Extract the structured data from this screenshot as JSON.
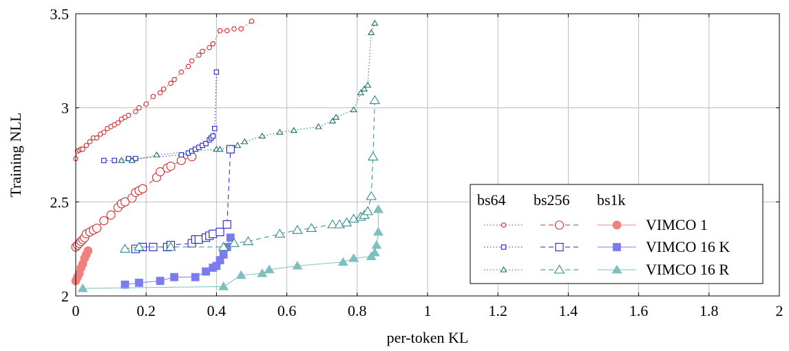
{
  "chart_data": {
    "type": "line",
    "xlabel": "per-token KL",
    "ylabel": "Training NLL",
    "xlim": [
      0,
      2
    ],
    "ylim": [
      2,
      3.5
    ],
    "xticks": [
      0,
      0.2,
      0.4,
      0.6,
      0.8,
      1,
      1.2,
      1.4,
      1.6,
      1.8,
      2
    ],
    "xtick_labels": [
      "0",
      "0.2",
      "0.4",
      "0.6",
      "0.8",
      "1",
      "1.2",
      "1.4",
      "1.6",
      "1.8",
      "2"
    ],
    "yticks": [
      2,
      2.5,
      3,
      3.5
    ],
    "ytick_labels": [
      "2",
      "2.5",
      "3",
      "3.5"
    ],
    "grid": true,
    "legend": {
      "placement": "bottom-right",
      "column_headers": [
        "bs64",
        "bs256",
        "bs1k"
      ],
      "row_labels": [
        "VIMCO 1",
        "VIMCO 16 K",
        "VIMCO 16 R"
      ]
    },
    "colors": {
      "vimco1": "#d62728",
      "vimco1_bs1k": "#f08080",
      "vimco16k": "#1f1fcc",
      "vimco16k_bs1k": "#7b7bf0",
      "vimco16r": "#1b6b6b",
      "vimco16r_bs256": "#2e8b8b",
      "vimco16r_bs1k": "#7fbfbf"
    },
    "series": [
      {
        "group": "VIMCO 1",
        "batch": "bs64",
        "style": "dotted",
        "marker": "circle-open",
        "color": "#d62728",
        "x": [
          0.0,
          0.005,
          0.01,
          0.015,
          0.02,
          0.03,
          0.04,
          0.05,
          0.06,
          0.07,
          0.08,
          0.09,
          0.1,
          0.11,
          0.12,
          0.13,
          0.14,
          0.15,
          0.17,
          0.18,
          0.2,
          0.22,
          0.24,
          0.25,
          0.27,
          0.28,
          0.3,
          0.32,
          0.33,
          0.35,
          0.36,
          0.38,
          0.39,
          0.41,
          0.43,
          0.45,
          0.47,
          0.5
        ],
        "y": [
          2.73,
          2.77,
          2.775,
          2.78,
          2.78,
          2.8,
          2.82,
          2.84,
          2.84,
          2.86,
          2.87,
          2.89,
          2.9,
          2.91,
          2.92,
          2.94,
          2.95,
          2.96,
          2.98,
          3.0,
          3.02,
          3.06,
          3.08,
          3.1,
          3.13,
          3.15,
          3.19,
          3.22,
          3.25,
          3.28,
          3.3,
          3.32,
          3.34,
          3.41,
          3.41,
          3.42,
          3.42,
          3.46
        ]
      },
      {
        "group": "VIMCO 1",
        "batch": "bs256",
        "style": "dashed",
        "marker": "circle-open",
        "color": "#d62728",
        "x": [
          0.0,
          0.005,
          0.01,
          0.015,
          0.02,
          0.025,
          0.03,
          0.04,
          0.05,
          0.06,
          0.08,
          0.1,
          0.12,
          0.13,
          0.14,
          0.16,
          0.17,
          0.18,
          0.19,
          0.23,
          0.24,
          0.26,
          0.27,
          0.3,
          0.33
        ],
        "y": [
          2.26,
          2.27,
          2.28,
          2.29,
          2.3,
          2.31,
          2.33,
          2.34,
          2.35,
          2.36,
          2.4,
          2.43,
          2.47,
          2.49,
          2.5,
          2.52,
          2.55,
          2.56,
          2.57,
          2.63,
          2.66,
          2.68,
          2.69,
          2.72,
          2.74
        ]
      },
      {
        "group": "VIMCO 1",
        "batch": "bs1k",
        "style": "solid",
        "marker": "circle-filled",
        "color": "#f08080",
        "x": [
          0.0,
          0.005,
          0.01,
          0.015,
          0.02,
          0.025,
          0.03,
          0.035
        ],
        "y": [
          2.08,
          2.1,
          2.12,
          2.15,
          2.17,
          2.2,
          2.22,
          2.24
        ]
      },
      {
        "group": "VIMCO 16 K",
        "batch": "bs64",
        "style": "dotted",
        "marker": "square-open",
        "color": "#1f1fcc",
        "x": [
          0.08,
          0.11,
          0.15,
          0.17,
          0.3,
          0.32,
          0.33,
          0.34,
          0.35,
          0.36,
          0.37,
          0.38,
          0.385,
          0.39,
          0.395,
          0.4
        ],
        "y": [
          2.72,
          2.72,
          2.73,
          2.73,
          2.75,
          2.76,
          2.77,
          2.78,
          2.79,
          2.8,
          2.81,
          2.83,
          2.84,
          2.85,
          2.89,
          3.19
        ]
      },
      {
        "group": "VIMCO 16 K",
        "batch": "bs256",
        "style": "dashed",
        "marker": "square-open",
        "color": "#1f1fcc",
        "x": [
          0.17,
          0.19,
          0.22,
          0.26,
          0.27,
          0.33,
          0.34,
          0.35,
          0.37,
          0.38,
          0.39,
          0.41,
          0.43,
          0.44
        ],
        "y": [
          2.25,
          2.26,
          2.26,
          2.26,
          2.27,
          2.28,
          2.3,
          2.3,
          2.31,
          2.32,
          2.33,
          2.34,
          2.38,
          2.78
        ]
      },
      {
        "group": "VIMCO 16 K",
        "batch": "bs1k",
        "style": "solid",
        "marker": "square-filled",
        "color": "#7b7bf0",
        "x": [
          0.14,
          0.18,
          0.24,
          0.28,
          0.34,
          0.37,
          0.39,
          0.4,
          0.41,
          0.42,
          0.43,
          0.44
        ],
        "y": [
          2.06,
          2.07,
          2.08,
          2.1,
          2.1,
          2.13,
          2.15,
          2.16,
          2.19,
          2.22,
          2.26,
          2.31
        ]
      },
      {
        "group": "VIMCO 16 R",
        "batch": "bs64",
        "style": "dotted",
        "marker": "triangle-open",
        "color": "#1b6b6b",
        "x": [
          0.13,
          0.16,
          0.23,
          0.4,
          0.41,
          0.46,
          0.48,
          0.53,
          0.58,
          0.62,
          0.69,
          0.73,
          0.74,
          0.79,
          0.81,
          0.82,
          0.83,
          0.84,
          0.85
        ],
        "y": [
          2.72,
          2.72,
          2.75,
          2.78,
          2.78,
          2.8,
          2.82,
          2.85,
          2.87,
          2.88,
          2.9,
          2.93,
          2.95,
          2.99,
          3.08,
          3.1,
          3.12,
          3.4,
          3.45
        ]
      },
      {
        "group": "VIMCO 16 R",
        "batch": "bs256",
        "style": "dashed",
        "marker": "triangle-open",
        "color": "#2e8b8b",
        "x": [
          0.14,
          0.18,
          0.27,
          0.42,
          0.45,
          0.49,
          0.58,
          0.63,
          0.67,
          0.73,
          0.75,
          0.77,
          0.79,
          0.81,
          0.82,
          0.83,
          0.84,
          0.845,
          0.85
        ],
        "y": [
          2.25,
          2.26,
          2.26,
          2.26,
          2.28,
          2.29,
          2.33,
          2.35,
          2.36,
          2.38,
          2.38,
          2.39,
          2.41,
          2.42,
          2.43,
          2.45,
          2.53,
          2.74,
          3.04
        ]
      },
      {
        "group": "VIMCO 16 R",
        "batch": "bs1k",
        "style": "solid",
        "marker": "triangle-filled",
        "color": "#7fbfbf",
        "x": [
          0.02,
          0.42,
          0.47,
          0.53,
          0.55,
          0.63,
          0.76,
          0.79,
          0.84,
          0.85,
          0.855,
          0.86,
          0.86
        ],
        "y": [
          2.04,
          2.05,
          2.11,
          2.12,
          2.14,
          2.16,
          2.18,
          2.2,
          2.21,
          2.23,
          2.27,
          2.34,
          2.46
        ]
      }
    ]
  }
}
